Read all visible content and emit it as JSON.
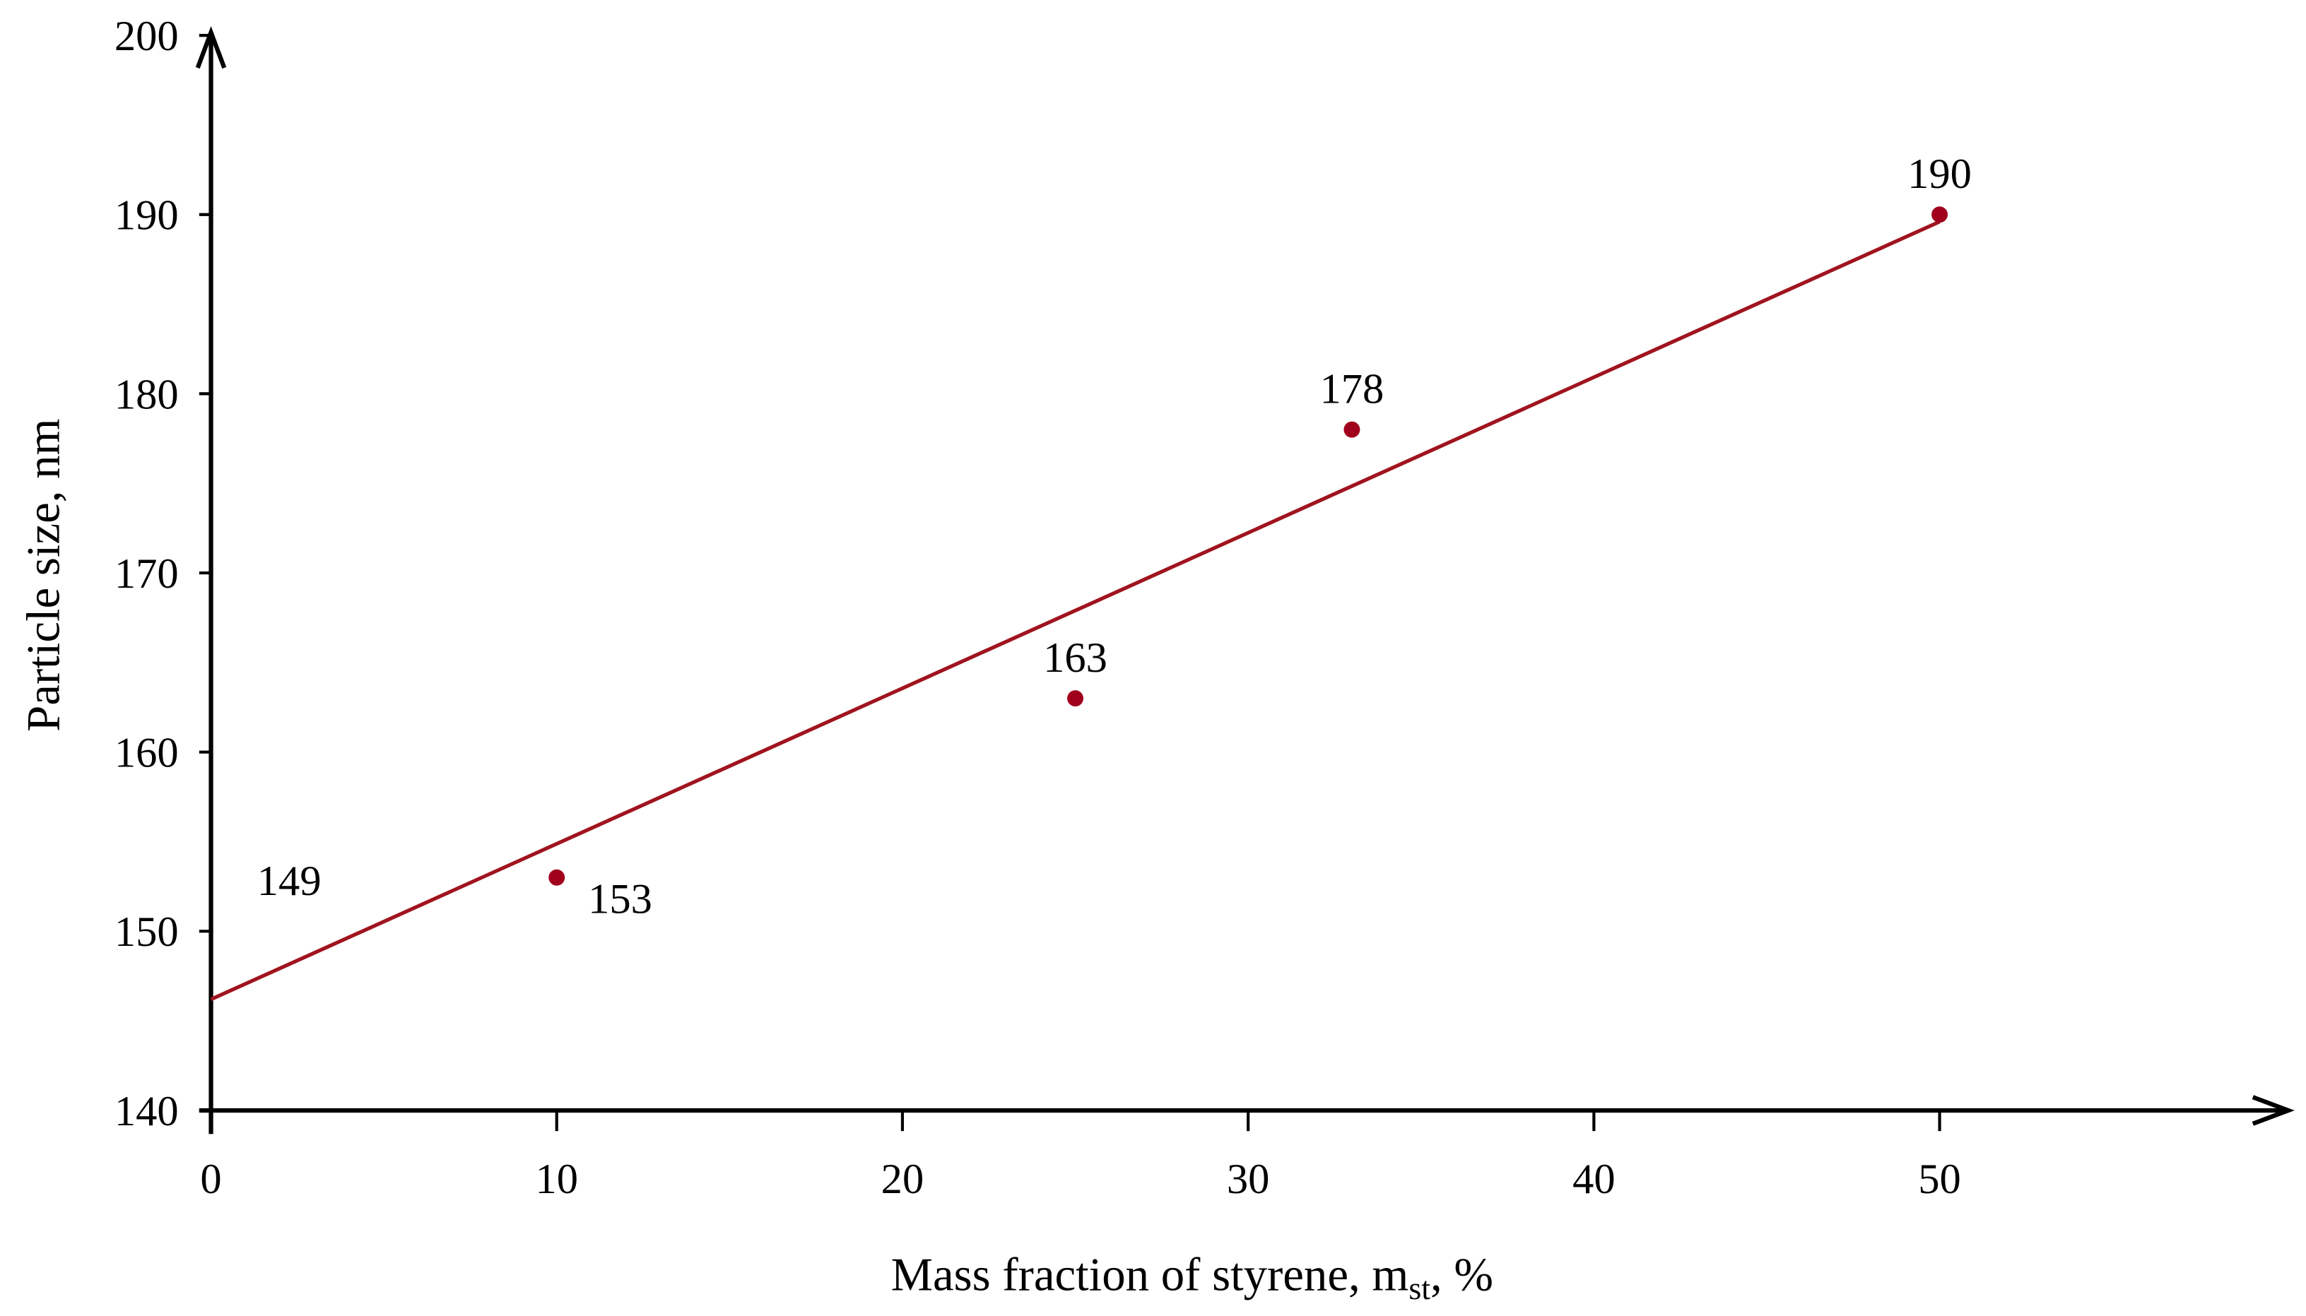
{
  "chart_data": {
    "type": "scatter",
    "xlabel": [
      "Mass fraction of styrene, m",
      "st",
      ", %"
    ],
    "ylabel": "Particle size, nm",
    "x": [
      10,
      25,
      33,
      50
    ],
    "values": [
      153,
      163,
      178,
      190
    ],
    "color": "#a0001c",
    "trendline": {
      "x": [
        0,
        50
      ],
      "y": [
        146.2,
        189.6
      ]
    },
    "annotations": [
      "149"
    ],
    "xlim": [
      0,
      60
    ],
    "ylim": [
      140,
      200
    ],
    "xticks": [
      0,
      10,
      20,
      30,
      40,
      50
    ],
    "yticks": [
      140,
      150,
      160,
      170,
      180,
      190,
      200
    ]
  }
}
